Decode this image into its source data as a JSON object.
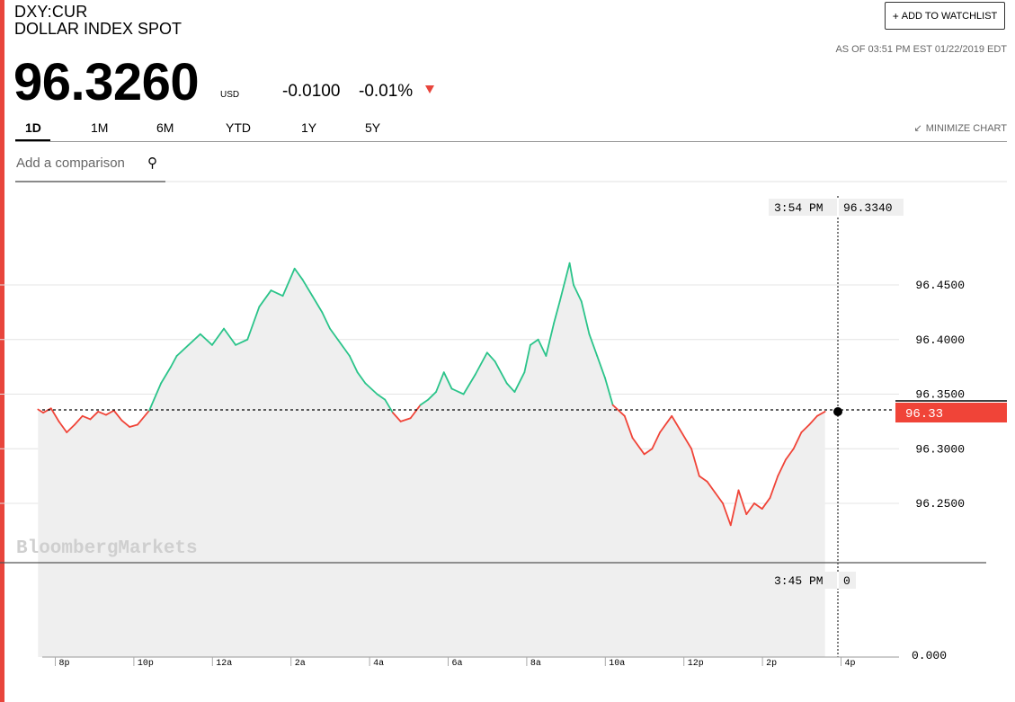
{
  "header": {
    "ticker": "DXY:CUR",
    "name": "DOLLAR INDEX SPOT",
    "watchlist_label": "ADD TO WATCHLIST",
    "as_of": "AS OF 03:51 PM EST 01/22/2019 EDT"
  },
  "quote": {
    "price": "96.3260",
    "currency": "USD",
    "change": "-0.0100",
    "change_pct": "-0.01%"
  },
  "tabs": [
    "1D",
    "1M",
    "6M",
    "YTD",
    "1Y",
    "5Y"
  ],
  "active_tab": "1D",
  "controls": {
    "minimize_label": "MINIMIZE CHART",
    "compare_placeholder": "Add a comparison"
  },
  "colors": {
    "up": "#2bc48a",
    "down": "#f04438",
    "accent": "#e8453c"
  },
  "icons": {
    "search": "search-icon",
    "minimize": "minimize-icon",
    "down_arrow": "down-triangle-icon"
  },
  "chart_data": {
    "type": "line",
    "watermark": "BloombergMarkets",
    "previous_close": 96.336,
    "crosshair": {
      "time": "3:54 PM",
      "value": "96.3340"
    },
    "volume_crosshair": {
      "time": "3:45 PM",
      "value": "0"
    },
    "last_label": "96.33",
    "y_ticks": [
      "96.4500",
      "96.4000",
      "96.3500",
      "96.3000",
      "96.2500"
    ],
    "volume_tick": "0.000",
    "x_ticks": [
      "8p",
      "10p",
      "12a",
      "2a",
      "4a",
      "6a",
      "8a",
      "10a",
      "12p",
      "2p",
      "4p"
    ],
    "x_unit": "hours after 6pm",
    "ylim": [
      96.2,
      96.48
    ],
    "series": [
      {
        "x": [
          1.47,
          1.6,
          1.8,
          2.0,
          2.2,
          2.4,
          2.6,
          2.8,
          3.0,
          3.2,
          3.4,
          3.6,
          3.8,
          4.0,
          4.3,
          4.6,
          4.85,
          5.0,
          5.3,
          5.6,
          5.9,
          6.2,
          6.5,
          6.8,
          7.1,
          7.4,
          7.7,
          8.0,
          8.2,
          8.45,
          8.7,
          8.9,
          9.1,
          9.4,
          9.6,
          9.8,
          10.1,
          10.3,
          10.5,
          10.7,
          10.95,
          11.2,
          11.4,
          11.6,
          11.8,
          12.0,
          12.3,
          12.6,
          12.9,
          13.1,
          13.4,
          13.6,
          13.85,
          14.0,
          14.2,
          14.4,
          14.6,
          14.75,
          15.0,
          15.1,
          15.3,
          15.5,
          15.7,
          15.9,
          16.1,
          16.4,
          16.6,
          16.9,
          17.1,
          17.3,
          17.6,
          17.8,
          18.1,
          18.3,
          18.5,
          18.7,
          18.9,
          19.1,
          19.3,
          19.5,
          19.7,
          19.9,
          20.1,
          20.3,
          20.5,
          20.7,
          20.9,
          21.1,
          21.3,
          21.5
        ],
        "y": [
          96.336,
          96.333,
          96.337,
          96.325,
          96.315,
          96.322,
          96.33,
          96.327,
          96.334,
          96.331,
          96.335,
          96.326,
          96.32,
          96.322,
          96.335,
          96.36,
          96.375,
          96.385,
          96.395,
          96.405,
          96.395,
          96.41,
          96.395,
          96.4,
          96.43,
          96.445,
          96.44,
          96.465,
          96.455,
          96.44,
          96.425,
          96.41,
          96.4,
          96.385,
          96.37,
          96.36,
          96.35,
          96.345,
          96.333,
          96.325,
          96.328,
          96.34,
          96.345,
          96.352,
          96.37,
          96.355,
          96.35,
          96.368,
          96.388,
          96.38,
          96.36,
          96.352,
          96.37,
          96.395,
          96.4,
          96.385,
          96.415,
          96.435,
          96.47,
          96.45,
          96.435,
          96.405,
          96.385,
          96.365,
          96.34,
          96.33,
          96.31,
          96.295,
          96.3,
          96.315,
          96.33,
          96.318,
          96.3,
          96.275,
          96.27,
          96.26,
          96.25,
          96.23,
          96.262,
          96.24,
          96.25,
          96.245,
          96.255,
          96.275,
          96.29,
          96.3,
          96.315,
          96.322,
          96.33,
          96.334
        ]
      }
    ]
  }
}
